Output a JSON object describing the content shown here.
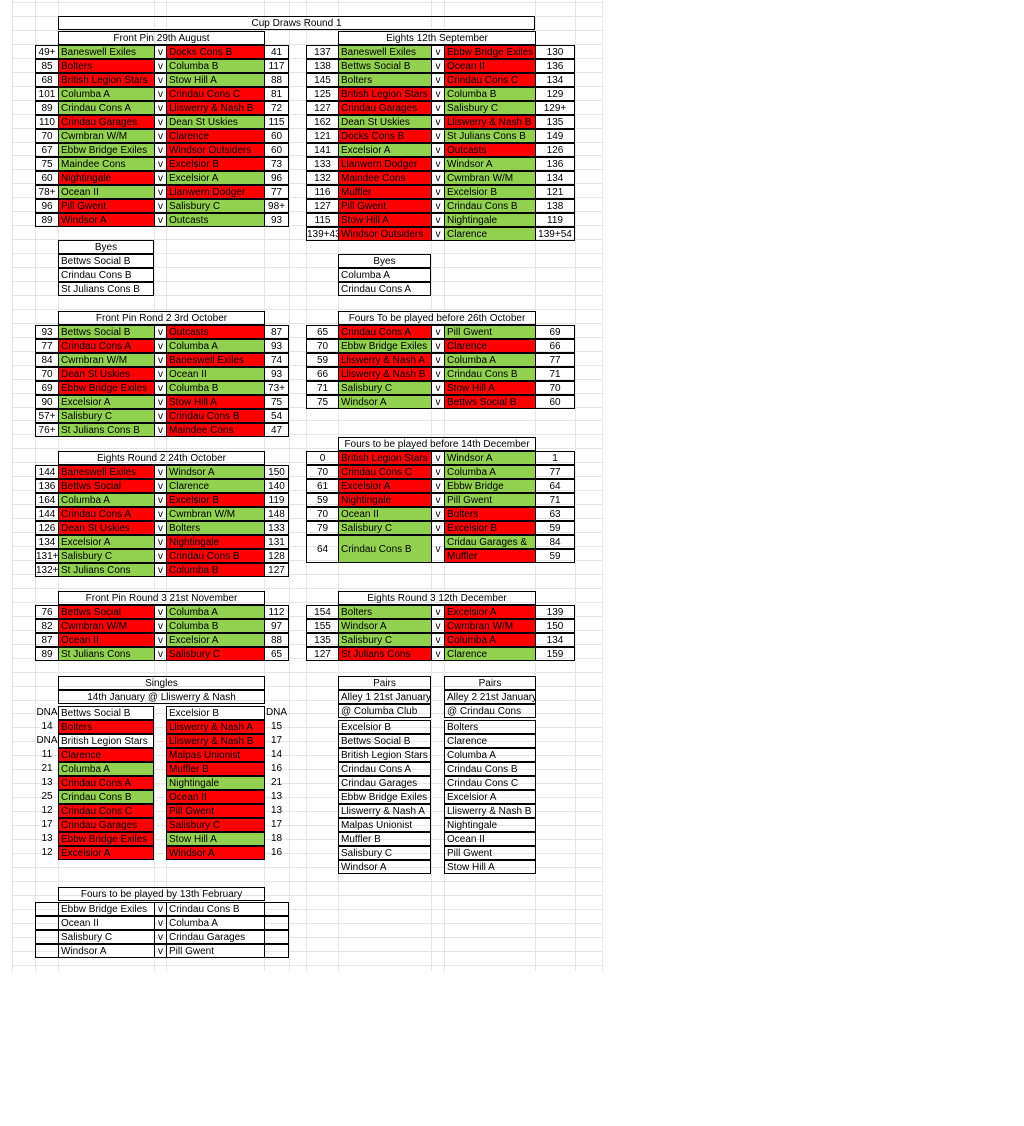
{
  "colors": {
    "win": "#92d050",
    "lose": "#ff0000",
    "grid": "#e6e6e6"
  },
  "title": "Cup Draws Round 1",
  "front_pin_r1": {
    "title": "Front Pin  29th August",
    "rows": [
      {
        "s1": "49+",
        "t1": "Baneswell Exiles",
        "c1": "g",
        "v": "v",
        "t2": "Docks Cons B",
        "c2": "r",
        "s2": "41"
      },
      {
        "s1": "85",
        "t1": "Bolters",
        "c1": "r",
        "v": "v",
        "t2": "Columba B",
        "c2": "g",
        "s2": "117"
      },
      {
        "s1": "68",
        "t1": "British Legion Stars",
        "c1": "r",
        "v": "v",
        "t2": "Stow Hill A",
        "c2": "g",
        "s2": "88"
      },
      {
        "s1": "101",
        "t1": "Columba A",
        "c1": "g",
        "v": "v",
        "t2": "Crindau Cons C",
        "c2": "r",
        "s2": "81"
      },
      {
        "s1": "89",
        "t1": "Crindau Cons A",
        "c1": "g",
        "v": "v",
        "t2": "Lliswerry & Nash B",
        "c2": "r",
        "s2": "72"
      },
      {
        "s1": "110",
        "t1": "Crindau Garages",
        "c1": "r",
        "v": "v",
        "t2": "Dean St Uskies",
        "c2": "g",
        "s2": "115"
      },
      {
        "s1": "70",
        "t1": "Cwmbran W/M",
        "c1": "g",
        "v": "v",
        "t2": "Clarence",
        "c2": "r",
        "s2": "60"
      },
      {
        "s1": "67",
        "t1": "Ebbw Bridge Exiles",
        "c1": "g",
        "v": "v",
        "t2": "Windsor Outsiders",
        "c2": "r",
        "s2": "60"
      },
      {
        "s1": "75",
        "t1": "Maindee Cons",
        "c1": "g",
        "v": "v",
        "t2": "Excelsior B",
        "c2": "r",
        "s2": "73"
      },
      {
        "s1": "60",
        "t1": "Nightingale",
        "c1": "r",
        "v": "v",
        "t2": "Excelsior A",
        "c2": "g",
        "s2": "96"
      },
      {
        "s1": "78+",
        "t1": "Ocean II",
        "c1": "g",
        "v": "v",
        "t2": "Llanwern Dodger",
        "c2": "r",
        "s2": "77"
      },
      {
        "s1": "96",
        "t1": "Pill Gwent",
        "c1": "r",
        "v": "v",
        "t2": "Salisbury C",
        "c2": "g",
        "s2": "98+"
      },
      {
        "s1": "89",
        "t1": "Windsor A",
        "c1": "r",
        "v": "v",
        "t2": "Outcasts",
        "c2": "g",
        "s2": "93"
      }
    ]
  },
  "eights_r1": {
    "title": "Eights 12th September",
    "rows": [
      {
        "s1": "137",
        "t1": "Baneswell Exiles",
        "c1": "g",
        "v": "v",
        "t2": "Ebbw Bridge Exiles",
        "c2": "r",
        "s2": "130"
      },
      {
        "s1": "138",
        "t1": "Bettws Social B",
        "c1": "g",
        "v": "v",
        "t2": "Ocean II",
        "c2": "r",
        "s2": "136"
      },
      {
        "s1": "145",
        "t1": "Bolters",
        "c1": "g",
        "v": "v",
        "t2": "Crindau Cons C",
        "c2": "r",
        "s2": "134"
      },
      {
        "s1": "125",
        "t1": "British Legion Stars",
        "c1": "r",
        "v": "v",
        "t2": "Columba B",
        "c2": "g",
        "s2": "129"
      },
      {
        "s1": "127",
        "t1": "Crindau Garages",
        "c1": "r",
        "v": "v",
        "t2": "Salisbury C",
        "c2": "g",
        "s2": "129+"
      },
      {
        "s1": "162",
        "t1": "Dean St Uskies",
        "c1": "g",
        "v": "v",
        "t2": "Lliswerry & Nash B",
        "c2": "r",
        "s2": "135"
      },
      {
        "s1": "121",
        "t1": "Docks Cons B",
        "c1": "r",
        "v": "v",
        "t2": "St Julians Cons B",
        "c2": "g",
        "s2": "149"
      },
      {
        "s1": "141",
        "t1": "Excelsior A",
        "c1": "g",
        "v": "v",
        "t2": "Outcasts",
        "c2": "r",
        "s2": "126"
      },
      {
        "s1": "133",
        "t1": "Llanwern Dodger",
        "c1": "r",
        "v": "v",
        "t2": "Windsor A",
        "c2": "g",
        "s2": "136"
      },
      {
        "s1": "132",
        "t1": "Maindee Cons",
        "c1": "r",
        "v": "v",
        "t2": "Cwmbran W/M",
        "c2": "g",
        "s2": "134"
      },
      {
        "s1": "116",
        "t1": "Muffler",
        "c1": "r",
        "v": "v",
        "t2": "Excelsior B",
        "c2": "g",
        "s2": "121"
      },
      {
        "s1": "127",
        "t1": "Pill Gwent",
        "c1": "r",
        "v": "v",
        "t2": "Crindau Cons B",
        "c2": "g",
        "s2": "138"
      },
      {
        "s1": "115",
        "t1": "Stow Hill A",
        "c1": "r",
        "v": "v",
        "t2": "Nightingale",
        "c2": "g",
        "s2": "119"
      },
      {
        "s1": "139+43",
        "t1": "Windsor Outsiders",
        "c1": "r",
        "v": "v",
        "t2": "Clarence",
        "c2": "g",
        "s2": "139+54"
      }
    ]
  },
  "byes_left": {
    "title": "Byes",
    "items": [
      "Bettws Social B",
      "Crindau Cons B",
      "St Julians Cons B"
    ]
  },
  "byes_right": {
    "title": "Byes",
    "items": [
      "Columba A",
      "Crindau Cons A"
    ]
  },
  "front_pin_r2": {
    "title": "Front Pin Rond 2  3rd October",
    "rows": [
      {
        "s1": "93",
        "t1": "Bettws Social B",
        "c1": "g",
        "v": "v",
        "t2": "Outcasts",
        "c2": "r",
        "s2": "87"
      },
      {
        "s1": "77",
        "t1": "Crindau Cons A",
        "c1": "r",
        "v": "v",
        "t2": "Columba A",
        "c2": "g",
        "s2": "93"
      },
      {
        "s1": "84",
        "t1": "Cwmbran W/M",
        "c1": "g",
        "v": "v",
        "t2": "Baneswell Exiles",
        "c2": "r",
        "s2": "74"
      },
      {
        "s1": "70",
        "t1": "Dean St Uskies",
        "c1": "r",
        "v": "v",
        "t2": "Ocean II",
        "c2": "g",
        "s2": "93"
      },
      {
        "s1": "69",
        "t1": "Ebbw Bridge Exiles",
        "c1": "r",
        "v": "v",
        "t2": "Columba B",
        "c2": "g",
        "s2": "73+"
      },
      {
        "s1": "90",
        "t1": "Excelsior A",
        "c1": "g",
        "v": "v",
        "t2": "Stow Hill A",
        "c2": "r",
        "s2": "75"
      },
      {
        "s1": "57+",
        "t1": "Salisbury C",
        "c1": "g",
        "v": "v",
        "t2": "Crindau Cons B",
        "c2": "r",
        "s2": "54"
      },
      {
        "s1": "76+",
        "t1": "St Julians Cons B",
        "c1": "g",
        "v": "v",
        "t2": "Maindee Cons",
        "c2": "r",
        "s2": "47"
      }
    ]
  },
  "fours_oct": {
    "title": "Fours To be played before 26th October",
    "rows": [
      {
        "s1": "65",
        "t1": "Crindau Cons A",
        "c1": "r",
        "v": "v",
        "t2": "Pill Gwent",
        "c2": "g",
        "s2": "69"
      },
      {
        "s1": "70",
        "t1": "Ebbw Bridge Exiles",
        "c1": "g",
        "v": "v",
        "t2": "Clarence",
        "c2": "r",
        "s2": "66"
      },
      {
        "s1": "59",
        "t1": "Lliswerry & Nash A",
        "c1": "r",
        "v": "v",
        "t2": "Columba A",
        "c2": "g",
        "s2": "77"
      },
      {
        "s1": "66",
        "t1": "Lliswerry & Nash B",
        "c1": "r",
        "v": "v",
        "t2": "Crindau Cons B",
        "c2": "g",
        "s2": "71"
      },
      {
        "s1": "71",
        "t1": "Salisbury C",
        "c1": "g",
        "v": "v",
        "t2": "Stow Hill A",
        "c2": "r",
        "s2": "70"
      },
      {
        "s1": "75",
        "t1": "Windsor A",
        "c1": "g",
        "v": "v",
        "t2": "Bettws Social B",
        "c2": "r",
        "s2": "60"
      }
    ]
  },
  "fours_dec": {
    "title": "Fours to be played before 14th December",
    "rows": [
      {
        "s1": "0",
        "t1": "British Legion Stars",
        "c1": "r",
        "v": "v",
        "t2": "Windsor A",
        "c2": "g",
        "s2": "1"
      },
      {
        "s1": "70",
        "t1": "Crindau Cons C",
        "c1": "r",
        "v": "v",
        "t2": "Columba A",
        "c2": "g",
        "s2": "77"
      },
      {
        "s1": "61",
        "t1": "Excelsior A",
        "c1": "r",
        "v": "v",
        "t2": " Ebbw Bridge",
        "c2": "g",
        "s2": "64"
      },
      {
        "s1": "59",
        "t1": "Nightingale",
        "c1": "r",
        "v": "v",
        "t2": "Pill Gwent",
        "c2": "g",
        "s2": "71"
      },
      {
        "s1": "70",
        "t1": "Ocean II",
        "c1": "g",
        "v": "v",
        "t2": "Bolters",
        "c2": "r",
        "s2": "63"
      },
      {
        "s1": "79",
        "t1": "Salisbury C",
        "c1": "g",
        "v": "v",
        "t2": "Excelsior B",
        "c2": "r",
        "s2": "59"
      }
    ],
    "last": {
      "s1": "64",
      "t1": "Crindau Cons B",
      "c1": "g",
      "v": "v",
      "t2a": "Cridau Garages &",
      "c2a": "g",
      "s2a": "84",
      "t2b": "Muffler",
      "c2b": "r",
      "s2b": "59"
    }
  },
  "eights_r2": {
    "title": "Eights Round 2 24th October",
    "rows": [
      {
        "s1": "144",
        "t1": "Baneswell Exiles",
        "c1": "r",
        "v": "v",
        "t2": "Windsor A",
        "c2": "g",
        "s2": "150"
      },
      {
        "s1": "136",
        "t1": "Bettws Social",
        "c1": "r",
        "v": "v",
        "t2": "Clarence",
        "c2": "g",
        "s2": "140"
      },
      {
        "s1": "164",
        "t1": "Columba A",
        "c1": "g",
        "v": "v",
        "t2": "Excelsior B",
        "c2": "r",
        "s2": "119"
      },
      {
        "s1": "144",
        "t1": "Crindau Cons A",
        "c1": "r",
        "v": "v",
        "t2": "Cwmbran W/M",
        "c2": "g",
        "s2": "148"
      },
      {
        "s1": "126",
        "t1": "Dean St Uskies",
        "c1": "r",
        "v": "v",
        "t2": "Bolters",
        "c2": "g",
        "s2": "133"
      },
      {
        "s1": "134",
        "t1": "Excelsior A",
        "c1": "g",
        "v": "v",
        "t2": "Nightingale",
        "c2": "r",
        "s2": "131"
      },
      {
        "s1": "131+",
        "t1": "Salisbury C",
        "c1": "g",
        "v": "v",
        "t2": " Crindau Cons B",
        "c2": "r",
        "s2": "128"
      },
      {
        "s1": "132+",
        "t1": "St Julians Cons",
        "c1": "g",
        "v": "v",
        "t2": " Columba B",
        "c2": "r",
        "s2": "127"
      }
    ]
  },
  "front_pin_r3": {
    "title": "Front Pin Round 3 21st November",
    "rows": [
      {
        "s1": "76",
        "t1": "Bettws Social",
        "c1": "r",
        "v": "v",
        "t2": "Columba A",
        "c2": "g",
        "s2": "112"
      },
      {
        "s1": "82",
        "t1": "Cwmbran W/M",
        "c1": "r",
        "v": "v",
        "t2": " Columba B",
        "c2": "g",
        "s2": "97"
      },
      {
        "s1": "87",
        "t1": "Ocean II",
        "c1": "r",
        "v": "v",
        "t2": "Excelsior A",
        "c2": "g",
        "s2": "88"
      },
      {
        "s1": "89",
        "t1": "St Julians Cons",
        "c1": "g",
        "v": "v",
        "t2": "Salisbury C",
        "c2": "r",
        "s2": "65"
      }
    ]
  },
  "eights_r3": {
    "title": "Eights Round 3 12th December",
    "rows": [
      {
        "s1": "154",
        "t1": "Bolters",
        "c1": "g",
        "v": "v",
        "t2": "Excelsior A",
        "c2": "r",
        "s2": "139"
      },
      {
        "s1": "155",
        "t1": "Windsor A",
        "c1": "g",
        "v": "v",
        "t2": "Cwmbran W/M",
        "c2": "r",
        "s2": "150"
      },
      {
        "s1": "135",
        "t1": "Salisbury C",
        "c1": "g",
        "v": "v",
        "t2": "Columba A",
        "c2": "r",
        "s2": "134"
      },
      {
        "s1": "127",
        "t1": "St Julians Cons",
        "c1": "r",
        "v": "v",
        "t2": "Clarence",
        "c2": "g",
        "s2": "159"
      }
    ]
  },
  "singles": {
    "title": "Singles",
    "subtitle": "14th January  @ Lliswerry & Nash",
    "rows": [
      {
        "s1": "DNA",
        "t1": "Bettws Social B",
        "c1": "w",
        "t2": "Excelsior B",
        "c2": "w",
        "s2": "DNA"
      },
      {
        "s1": "14",
        "t1": "Bolters",
        "c1": "r",
        "t2": "Lliswerry & Nash A",
        "c2": "r",
        "s2": "15"
      },
      {
        "s1": "DNA",
        "t1": "British Legion Stars",
        "c1": "w",
        "t2": "Lliswerry & Nash B",
        "c2": "r",
        "s2": "17"
      },
      {
        "s1": "11",
        "t1": "Clarence",
        "c1": "r",
        "t2": "Malpas Unionist",
        "c2": "r",
        "s2": "14"
      },
      {
        "s1": "21",
        "t1": "Columba A",
        "c1": "g",
        "t2": "Muffler B",
        "c2": "r",
        "s2": "16"
      },
      {
        "s1": "13",
        "t1": "Crindau Cons A",
        "c1": "r",
        "t2": "Nightingale",
        "c2": "g",
        "s2": "21"
      },
      {
        "s1": "25",
        "t1": "Crindau Cons B",
        "c1": "g",
        "t2": "Ocean II",
        "c2": "r",
        "s2": "13"
      },
      {
        "s1": "12",
        "t1": "Crindau Cons C",
        "c1": "r",
        "t2": "Pill Gwent",
        "c2": "r",
        "s2": "13"
      },
      {
        "s1": "17",
        "t1": "Crindau Garages",
        "c1": "r",
        "t2": "Salisbury C",
        "c2": "r",
        "s2": "17"
      },
      {
        "s1": "13",
        "t1": "Ebbw Bridge Exiles",
        "c1": "r",
        "t2": "Stow Hill A",
        "c2": "g",
        "s2": "18"
      },
      {
        "s1": "12",
        "t1": "Excelsior A",
        "c1": "r",
        "t2": "Windsor A",
        "c2": "r",
        "s2": "16"
      }
    ]
  },
  "pairs1": {
    "title": "Pairs",
    "subtitle": "Alley 1 21st January",
    "venue": "@ Columba Club",
    "items": [
      "Excelsior B",
      "Bettws Social B",
      "British Legion Stars",
      "Crindau Cons A",
      "Crindau Garages",
      "Ebbw Bridge Exiles",
      "Lliswerry & Nash A",
      "Malpas Unionist",
      "Muffler B",
      "Salisbury C",
      "Windsor A"
    ]
  },
  "pairs2": {
    "title": "Pairs",
    "subtitle": "Alley 2 21st January",
    "venue": "@ Crindau Cons",
    "items": [
      "Bolters",
      "Clarence",
      "Columba A",
      "Crindau Cons B",
      "Crindau Cons C",
      "Excelsior A",
      "Lliswerry & Nash B",
      "Nightingale",
      "Ocean II",
      "Pill Gwent",
      "Stow Hill A"
    ]
  },
  "fours_feb": {
    "title": "Fours to be played by 13th February",
    "rows": [
      {
        "s1": "",
        "t1": "Ebbw Bridge Exiles",
        "c1": "w",
        "v": "v",
        "t2": "Crindau Cons B",
        "c2": "w",
        "s2": ""
      },
      {
        "s1": "",
        "t1": "Ocean II",
        "c1": "w",
        "v": "v",
        "t2": "Columba A",
        "c2": "w",
        "s2": ""
      },
      {
        "s1": "",
        "t1": "Salisbury C",
        "c1": "w",
        "v": "v",
        "t2": "Crindau Garages",
        "c2": "w",
        "s2": ""
      },
      {
        "s1": "",
        "t1": "Windsor A",
        "c1": "w",
        "v": "v",
        "t2": "Pill Gwent",
        "c2": "w",
        "s2": ""
      }
    ]
  }
}
